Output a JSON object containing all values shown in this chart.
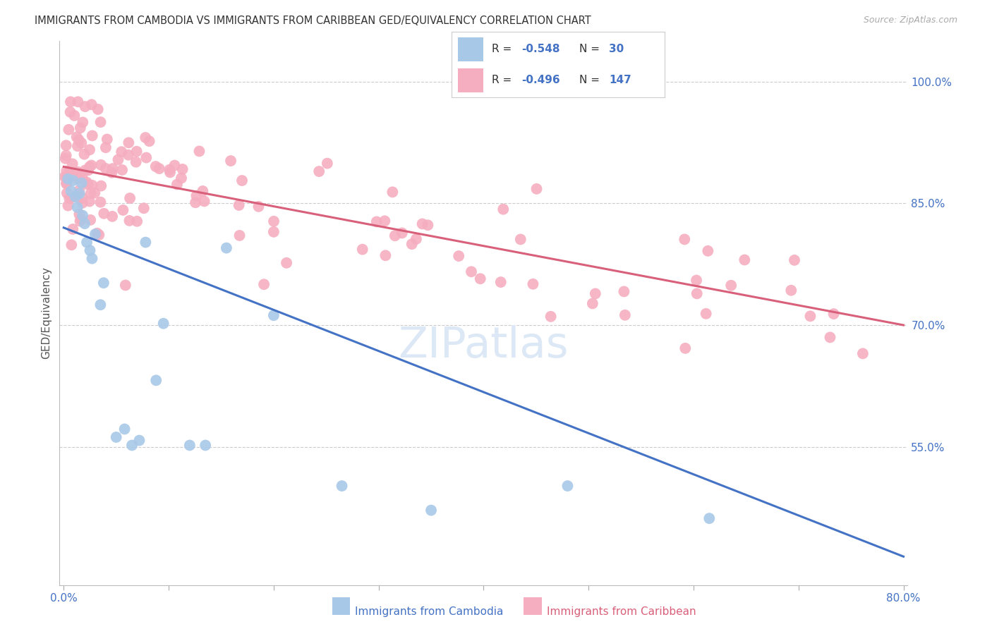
{
  "title": "IMMIGRANTS FROM CAMBODIA VS IMMIGRANTS FROM CARIBBEAN GED/EQUIVALENCY CORRELATION CHART",
  "source": "Source: ZipAtlas.com",
  "ylabel": "GED/Equivalency",
  "legend_r1": "-0.548",
  "legend_n1": "30",
  "legend_r2": "-0.496",
  "legend_n2": "147",
  "color_cambodia": "#a8c8e8",
  "color_caribbean": "#f5aec0",
  "line_color_cambodia": "#4472c4",
  "line_color_caribbean": "#d9607a",
  "background_color": "#ffffff",
  "grid_color": "#cccccc",
  "title_color": "#333333",
  "label_color_blue": "#4472c4",
  "watermark_color": "#dce8f5",
  "xmin": 0.0,
  "xmax": 0.8,
  "ymin": 0.38,
  "ymax": 1.05,
  "yticks": [
    1.0,
    0.85,
    0.7,
    0.55
  ],
  "camb_line_x0": 0.0,
  "camb_line_y0": 0.82,
  "camb_line_x1": 0.8,
  "camb_line_y1": 0.415,
  "carib_line_x0": 0.0,
  "carib_line_y0": 0.895,
  "carib_line_x1": 0.8,
  "carib_line_y1": 0.7
}
